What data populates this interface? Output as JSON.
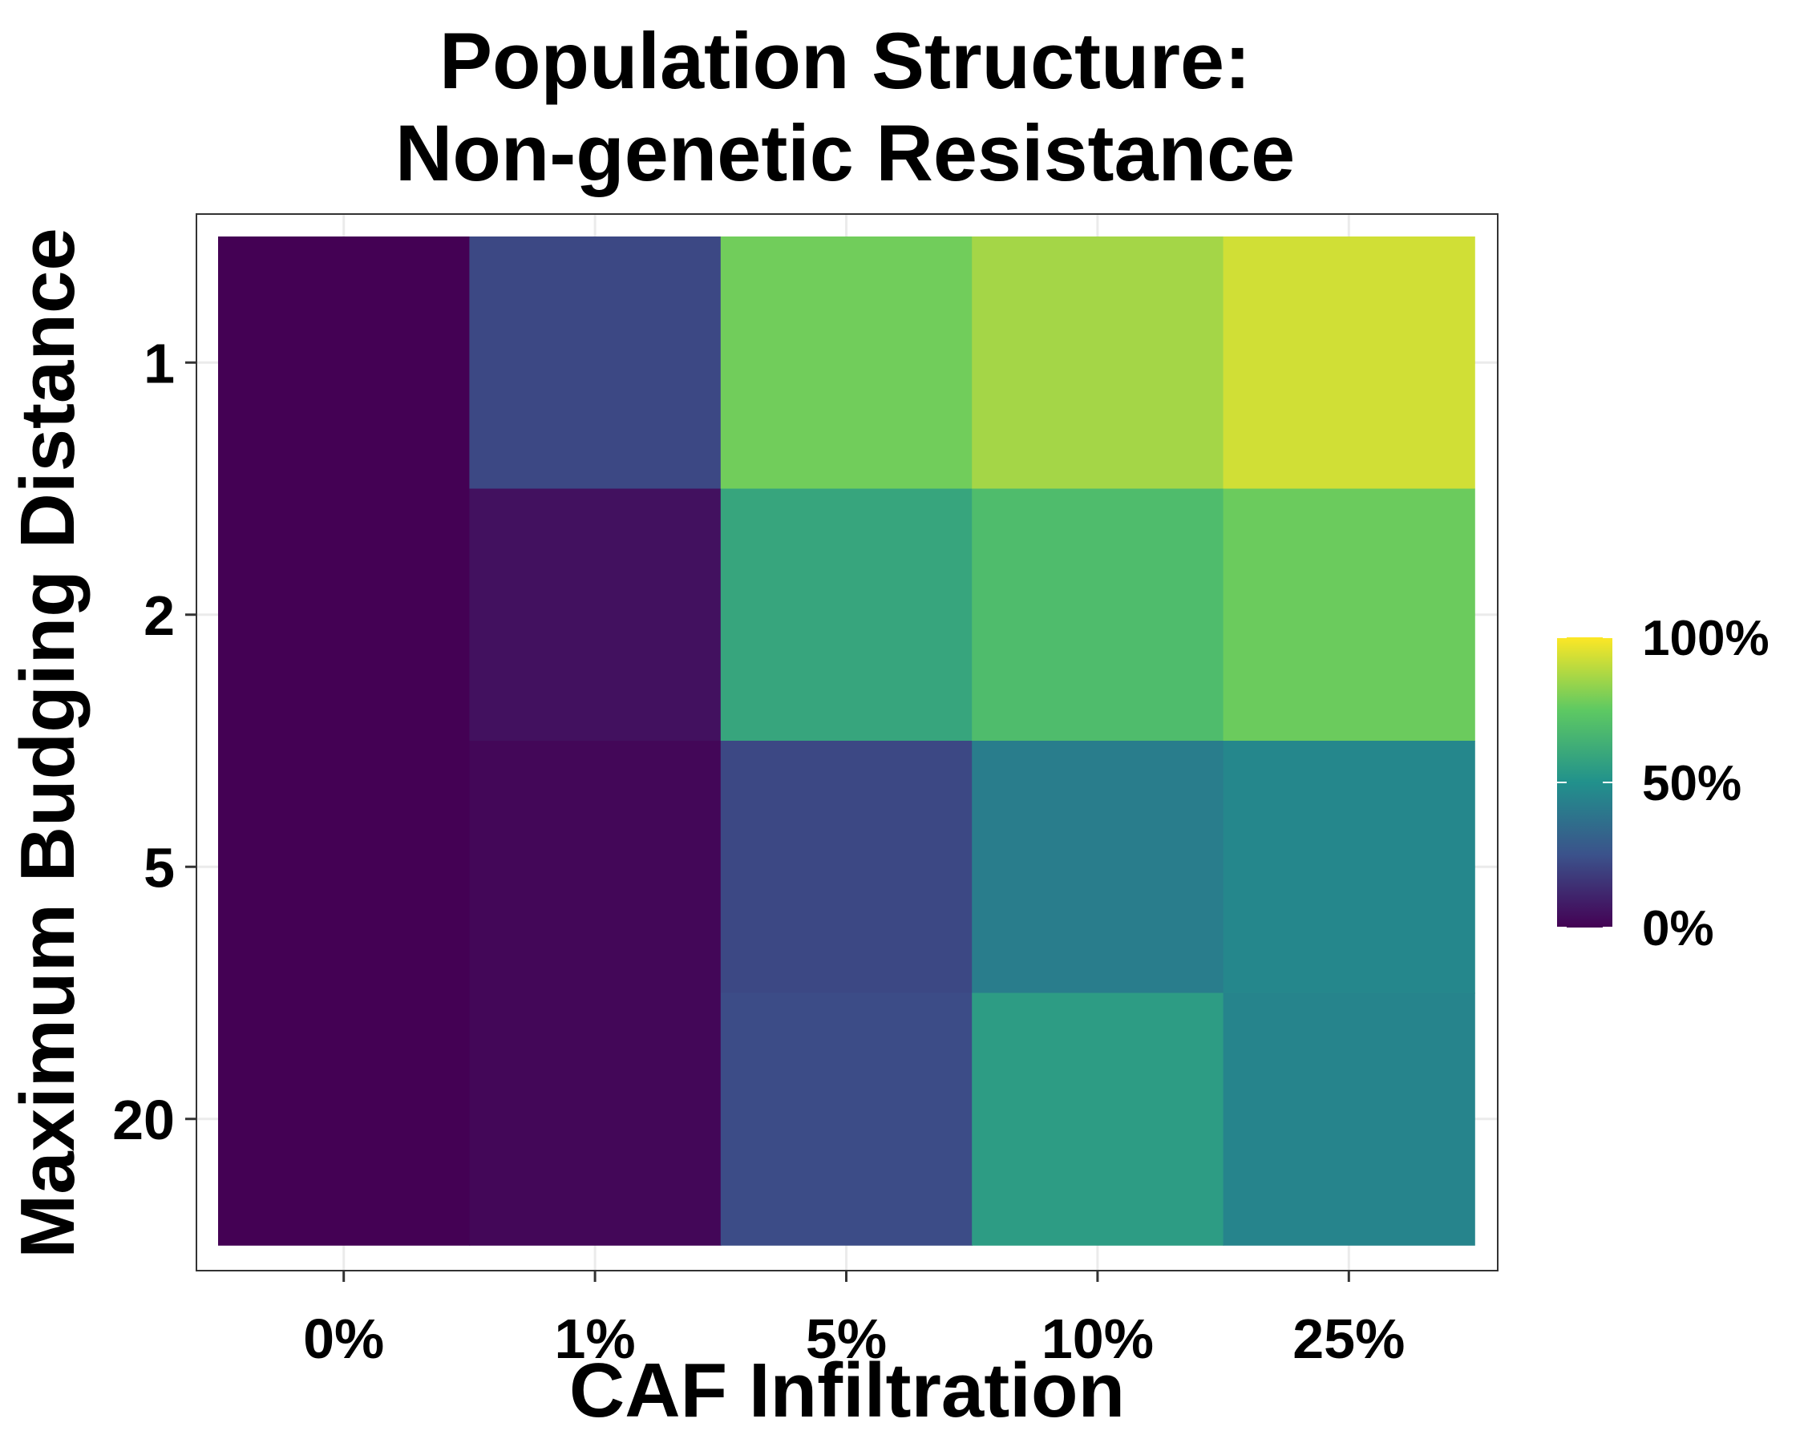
{
  "chart_data": {
    "type": "heatmap",
    "title": [
      "Population Structure:",
      "Non-genetic Resistance"
    ],
    "xlabel": "CAF Infiltration",
    "ylabel": "Maximum Budging Distance",
    "x_categories": [
      "0%",
      "1%",
      "5%",
      "10%",
      "25%"
    ],
    "y_categories": [
      "1",
      "2",
      "5",
      "20"
    ],
    "value_unit": "%",
    "values": [
      [
        0,
        22,
        78,
        86,
        93
      ],
      [
        0,
        5,
        59,
        69,
        77
      ],
      [
        0,
        2,
        22,
        42,
        46
      ],
      [
        0,
        2,
        23,
        55,
        45
      ]
    ],
    "color_scale": {
      "name": "viridis",
      "stops": [
        "#440154",
        "#3b528b",
        "#21918c",
        "#5ec962",
        "#fde725"
      ],
      "range": [
        0,
        100
      ],
      "legend_ticks": [
        "0%",
        "50%",
        "100%"
      ],
      "legend_position": "right"
    },
    "grid": true,
    "background_color": "#ffffff",
    "gridline_color": "#ebebeb",
    "panel_border_color": "#333333"
  }
}
